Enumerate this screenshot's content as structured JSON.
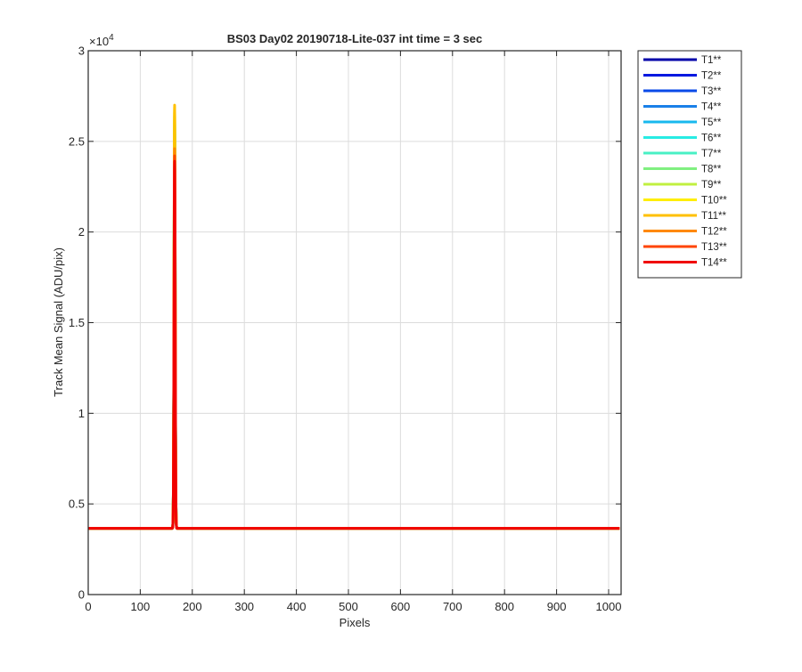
{
  "chart_data": {
    "type": "line",
    "title": "BS03 Day02 20190718-Lite-037 int time = 3 sec",
    "xlabel": "Pixels",
    "ylabel": "Track Mean Signal (ADU/pix)",
    "y_exponent_label": "×10",
    "y_exponent": "4",
    "xlim": [
      0,
      1024
    ],
    "ylim": [
      0,
      30000
    ],
    "x_ticks": [
      0,
      100,
      200,
      300,
      400,
      500,
      600,
      700,
      800,
      900,
      1000
    ],
    "x_tick_labels": [
      "0",
      "100",
      "200",
      "300",
      "400",
      "500",
      "600",
      "700",
      "800",
      "900",
      "1000"
    ],
    "y_ticks": [
      0,
      5000,
      10000,
      15000,
      20000,
      25000,
      30000
    ],
    "y_tick_labels": [
      "0",
      "0.5",
      "1",
      "1.5",
      "2",
      "2.5",
      "3"
    ],
    "grid": true,
    "legend_position": "outside-top-right",
    "baseline": 3650,
    "peak_x": 166,
    "series": [
      {
        "name": "T1**",
        "color": "#0000a8",
        "peak": 24500
      },
      {
        "name": "T2**",
        "color": "#0018e0",
        "peak": 24800
      },
      {
        "name": "T3**",
        "color": "#0a4ae8",
        "peak": 25200
      },
      {
        "name": "T4**",
        "color": "#1a80e8",
        "peak": 25500
      },
      {
        "name": "T5**",
        "color": "#18b8ee",
        "peak": 25800
      },
      {
        "name": "T6**",
        "color": "#28ece4",
        "peak": 26000
      },
      {
        "name": "T7**",
        "color": "#48f0c4",
        "peak": 26200
      },
      {
        "name": "T8**",
        "color": "#80f080",
        "peak": 26400
      },
      {
        "name": "T9**",
        "color": "#c0f040",
        "peak": 26600
      },
      {
        "name": "T10**",
        "color": "#ffee00",
        "peak": 26900
      },
      {
        "name": "T11**",
        "color": "#ffc000",
        "peak": 27000
      },
      {
        "name": "T12**",
        "color": "#ff8800",
        "peak": 24600
      },
      {
        "name": "T13**",
        "color": "#ff4400",
        "peak": 24200
      },
      {
        "name": "T14**",
        "color": "#f00000",
        "peak": 23900
      }
    ]
  }
}
